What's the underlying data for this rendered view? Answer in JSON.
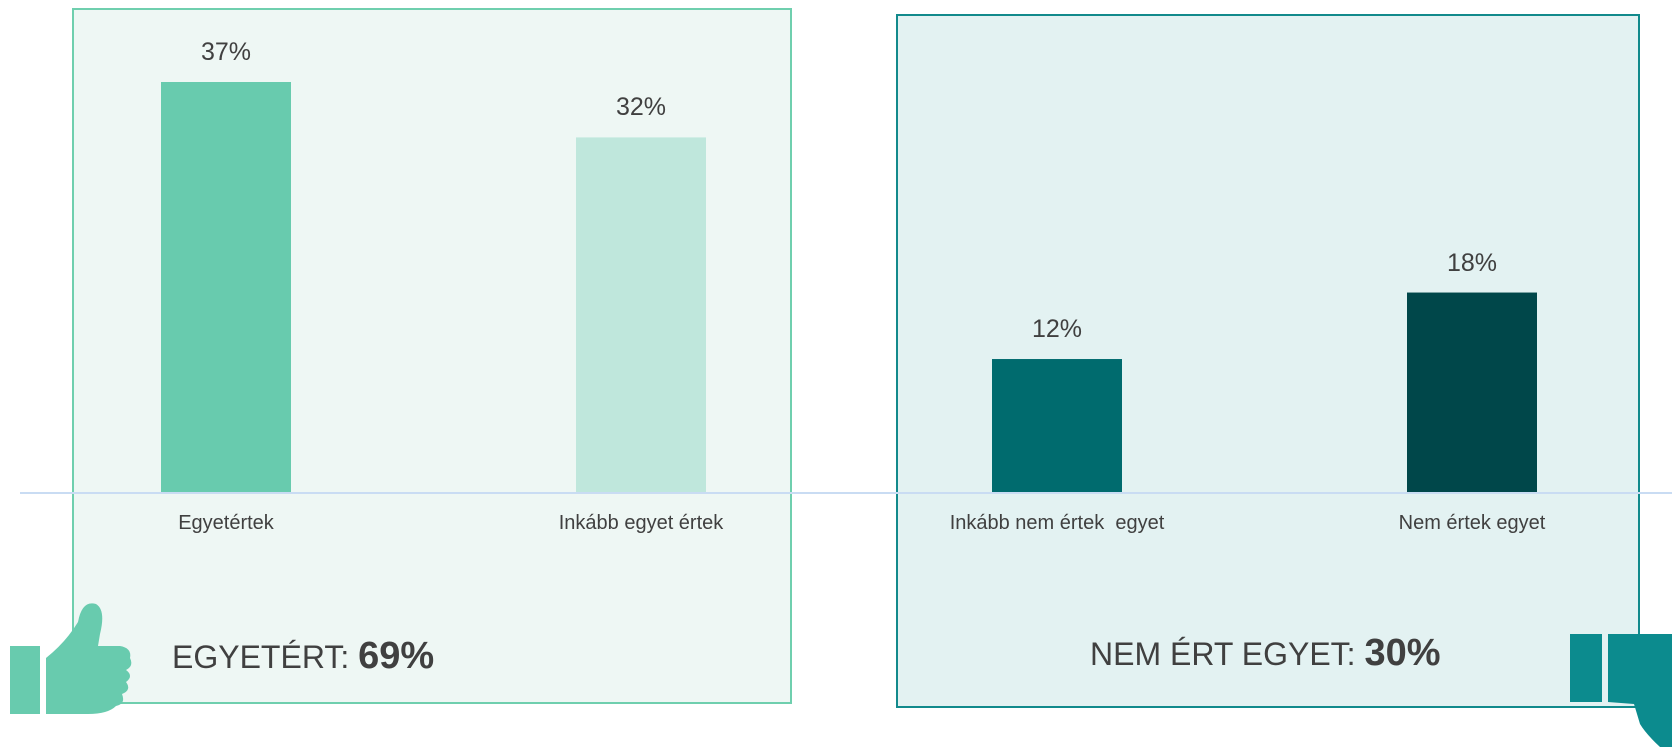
{
  "chart_data": {
    "type": "bar",
    "categories": [
      "Egyetértek",
      "Inkább egyet értek",
      "Inkább nem értek  egyet",
      "Nem értek egyet"
    ],
    "values": [
      37,
      32,
      12,
      18
    ],
    "value_labels": [
      "37%",
      "32%",
      "12%",
      "18%"
    ],
    "colors": [
      "#68cbae",
      "#bfe7dc",
      "#006b6e",
      "#00474a"
    ],
    "ylim": [
      0,
      40
    ],
    "grid": false,
    "groups": [
      {
        "label": "EGYETÉRT:",
        "total": "69%"
      },
      {
        "label": "NEM ÉRT EGYET:",
        "total": "30%"
      }
    ]
  },
  "icons": [
    "thumbs-up-icon",
    "thumbs-down-icon"
  ],
  "theme": {
    "agree_color": "#68cbae",
    "disagree_color": "#0c8b8e"
  }
}
